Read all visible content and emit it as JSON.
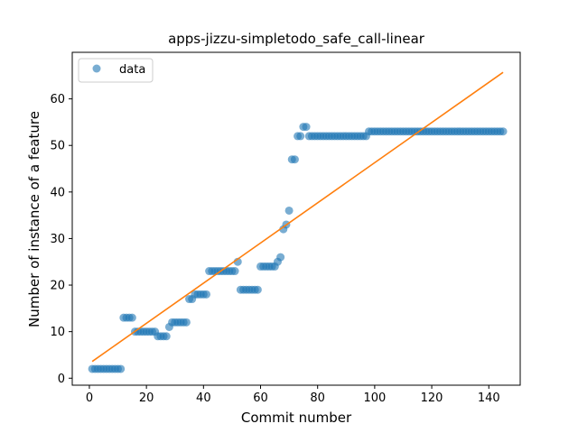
{
  "chart_data": {
    "type": "scatter",
    "title": "apps-jizzu-simpletodo_safe_call-linear",
    "xlabel": "Commit number",
    "ylabel": "Number of instance of a feature",
    "xlim": [
      -6,
      151
    ],
    "ylim": [
      -1.5,
      70
    ],
    "xticks": [
      0,
      20,
      40,
      60,
      80,
      100,
      120,
      140
    ],
    "yticks": [
      0,
      10,
      20,
      30,
      40,
      50,
      60
    ],
    "legend": {
      "position": "top-left",
      "entries": [
        "data"
      ]
    },
    "grid": false,
    "colors": {
      "data": "#1f77b4",
      "fit": "#ff7f0e"
    },
    "series": [
      {
        "name": "data",
        "kind": "scatter",
        "x": [
          1,
          2,
          3,
          4,
          5,
          6,
          7,
          8,
          9,
          10,
          11,
          12,
          13,
          14,
          15,
          16,
          17,
          18,
          19,
          20,
          21,
          22,
          23,
          24,
          25,
          26,
          27,
          28,
          29,
          30,
          31,
          32,
          33,
          34,
          35,
          36,
          37,
          38,
          39,
          40,
          41,
          42,
          43,
          44,
          45,
          46,
          47,
          48,
          49,
          50,
          51,
          52,
          53,
          54,
          55,
          56,
          57,
          58,
          59,
          60,
          61,
          62,
          63,
          64,
          65,
          66,
          67,
          68,
          69,
          70,
          71,
          72,
          73,
          74,
          75,
          76,
          77,
          78,
          79,
          80,
          81,
          82,
          83,
          84,
          85,
          86,
          87,
          88,
          89,
          90,
          91,
          92,
          93,
          94,
          95,
          96,
          97,
          98,
          99,
          100,
          101,
          102,
          103,
          104,
          105,
          106,
          107,
          108,
          109,
          110,
          111,
          112,
          113,
          114,
          115,
          116,
          117,
          118,
          119,
          120,
          121,
          122,
          123,
          124,
          125,
          126,
          127,
          128,
          129,
          130,
          131,
          132,
          133,
          134,
          135,
          136,
          137,
          138,
          139,
          140,
          141,
          142,
          143,
          144,
          145
        ],
        "y": [
          2,
          2,
          2,
          2,
          2,
          2,
          2,
          2,
          2,
          2,
          2,
          13,
          13,
          13,
          13,
          10,
          10,
          10,
          10,
          10,
          10,
          10,
          10,
          9,
          9,
          9,
          9,
          11,
          12,
          12,
          12,
          12,
          12,
          12,
          17,
          17,
          18,
          18,
          18,
          18,
          18,
          23,
          23,
          23,
          23,
          23,
          23,
          23,
          23,
          23,
          23,
          25,
          19,
          19,
          19,
          19,
          19,
          19,
          19,
          24,
          24,
          24,
          24,
          24,
          24,
          25,
          26,
          32,
          33,
          36,
          47,
          47,
          52,
          52,
          54,
          54,
          52,
          52,
          52,
          52,
          52,
          52,
          52,
          52,
          52,
          52,
          52,
          52,
          52,
          52,
          52,
          52,
          52,
          52,
          52,
          52,
          52,
          53,
          53,
          53,
          53,
          53,
          53,
          53,
          53,
          53,
          53,
          53,
          53,
          53,
          53,
          53,
          53,
          53,
          53,
          53,
          53,
          53,
          53,
          53,
          53,
          53,
          53,
          53,
          53,
          53,
          53,
          53,
          53,
          53,
          53,
          53,
          53,
          53,
          53,
          53,
          53,
          53,
          53,
          53,
          53,
          53,
          53,
          53,
          53
        ]
      },
      {
        "name": "",
        "kind": "line",
        "x": [
          1,
          145
        ],
        "y": [
          3.6,
          65.7
        ]
      }
    ]
  }
}
